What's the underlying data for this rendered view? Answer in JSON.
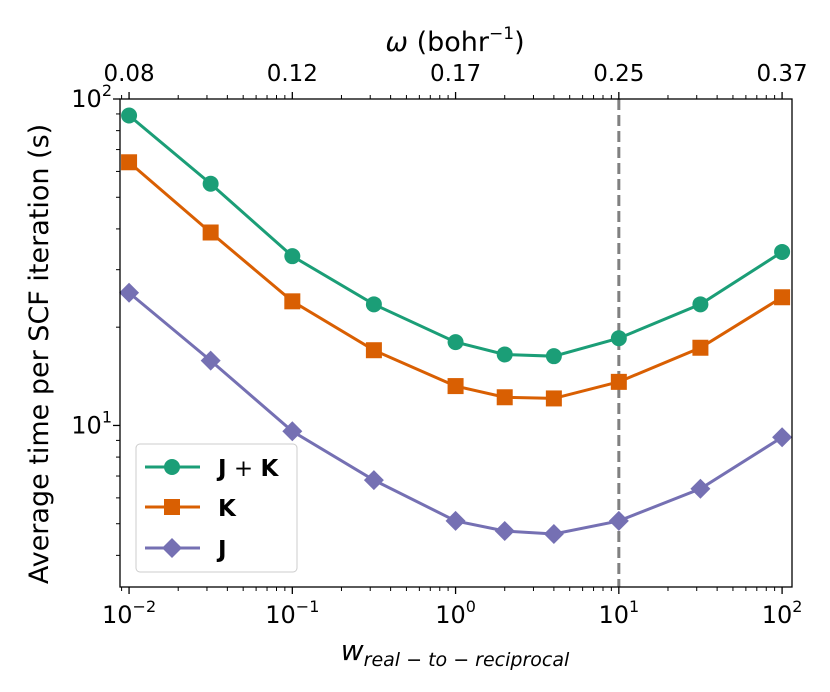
{
  "chart_data": {
    "type": "line",
    "title": "",
    "xlabel": "w_real-to-reciprocal",
    "xlabel_main": "w",
    "xlabel_sub": "real − to − reciprocal",
    "ylabel": "Average time per SCF iteration (s)",
    "top_xlabel_omega": "ω",
    "top_xlabel_rest": " (bohr",
    "top_xlabel_exp": "−1",
    "top_xlabel_close": ")",
    "x_scale": "log",
    "y_scale": "log",
    "xlim": [
      0.0088,
      115
    ],
    "ylim": [
      3.2,
      100
    ],
    "x": [
      0.01,
      0.0316,
      0.1,
      0.316,
      1,
      2,
      4,
      10,
      31.6,
      100
    ],
    "series": [
      {
        "name": "J + K",
        "label_a": "J",
        "label_op": " + ",
        "label_b": "K",
        "color": "#1b9e77",
        "marker": "circle",
        "values": [
          89,
          55,
          33,
          23.5,
          18,
          16.5,
          16.3,
          18.5,
          23.5,
          34
        ]
      },
      {
        "name": "K",
        "label": "K",
        "color": "#d95f02",
        "marker": "square",
        "values": [
          64,
          39,
          24,
          17,
          13.2,
          12.2,
          12.1,
          13.6,
          17.3,
          24.7
        ]
      },
      {
        "name": "J",
        "label": "J",
        "color": "#7570b3",
        "marker": "diamond",
        "values": [
          25.5,
          15.8,
          9.6,
          6.8,
          5.1,
          4.75,
          4.65,
          5.1,
          6.4,
          9.2
        ]
      }
    ],
    "reference_line": {
      "x": 10,
      "style": "dashed",
      "color": "#808080"
    },
    "x_ticks": [
      {
        "value": 0.01,
        "base": "10",
        "exp": "−2"
      },
      {
        "value": 0.1,
        "base": "10",
        "exp": "−1"
      },
      {
        "value": 1,
        "base": "10",
        "exp": "0"
      },
      {
        "value": 10,
        "base": "10",
        "exp": "1"
      },
      {
        "value": 100,
        "base": "10",
        "exp": "2"
      }
    ],
    "y_ticks": [
      {
        "value": 10,
        "base": "10",
        "exp": "1"
      },
      {
        "value": 100,
        "base": "10",
        "exp": "2"
      }
    ],
    "top_ticks": [
      {
        "value": 0.01,
        "label": "0.08"
      },
      {
        "value": 0.1,
        "label": "0.12"
      },
      {
        "value": 1,
        "label": "0.17"
      },
      {
        "value": 10,
        "label": "0.25"
      },
      {
        "value": 100,
        "label": "0.37"
      }
    ],
    "legend_position": "lower-left"
  }
}
